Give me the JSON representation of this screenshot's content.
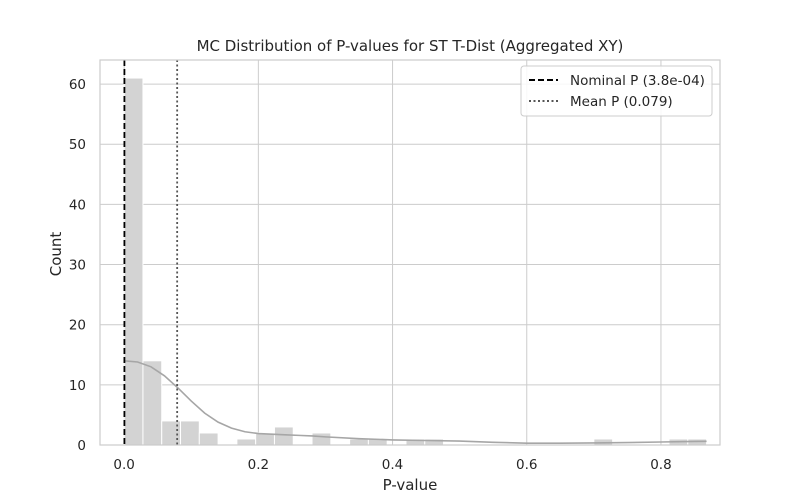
{
  "chart_data": {
    "type": "histogram",
    "title": "MC Distribution of P-values for ST T-Dist (Aggregated XY)",
    "xlabel": "P-value",
    "ylabel": "Count",
    "xlim": [
      -0.036,
      0.888
    ],
    "ylim": [
      0,
      64
    ],
    "xticks": [
      0.0,
      0.2,
      0.4,
      0.6,
      0.8
    ],
    "xtick_labels": [
      "0.0",
      "0.2",
      "0.4",
      "0.6",
      "0.8"
    ],
    "yticks": [
      0,
      10,
      20,
      30,
      40,
      50,
      60
    ],
    "ytick_labels": [
      "0",
      "10",
      "20",
      "30",
      "40",
      "50",
      "60"
    ],
    "grid": true,
    "bar_color": "#d3d3d3",
    "bin_edges": [
      0.0,
      0.028,
      0.056,
      0.084,
      0.112,
      0.14,
      0.168,
      0.196,
      0.224,
      0.252,
      0.28,
      0.308,
      0.336,
      0.364,
      0.392,
      0.42,
      0.448,
      0.476,
      0.504,
      0.532,
      0.56,
      0.588,
      0.616,
      0.644,
      0.672,
      0.7,
      0.728,
      0.756,
      0.784,
      0.812,
      0.84,
      0.868
    ],
    "counts": [
      61,
      14,
      4,
      4,
      2,
      0,
      1,
      2,
      3,
      0,
      2,
      0,
      1,
      1,
      0,
      1,
      1,
      0,
      0,
      0,
      0,
      0,
      0,
      0,
      0,
      1,
      0,
      0,
      0,
      1,
      1
    ],
    "kde": {
      "color": "#a6a6a6",
      "x": [
        0.0,
        0.02,
        0.04,
        0.06,
        0.08,
        0.1,
        0.12,
        0.14,
        0.16,
        0.18,
        0.2,
        0.22,
        0.24,
        0.26,
        0.28,
        0.3,
        0.35,
        0.4,
        0.45,
        0.5,
        0.55,
        0.6,
        0.65,
        0.7,
        0.75,
        0.8,
        0.85,
        0.868
      ],
      "y": [
        14,
        13.8,
        13,
        11.5,
        9.5,
        7.3,
        5.3,
        3.8,
        2.8,
        2.2,
        1.9,
        1.8,
        1.7,
        1.6,
        1.5,
        1.35,
        1.05,
        0.85,
        0.75,
        0.65,
        0.45,
        0.3,
        0.3,
        0.35,
        0.4,
        0.5,
        0.6,
        0.62
      ]
    },
    "lines": [
      {
        "name": "Nominal P (3.8e-04)",
        "x": 0.00038,
        "style": "dashed",
        "color": "#000000"
      },
      {
        "name": "Mean P (0.079)",
        "x": 0.079,
        "style": "dotted",
        "color": "#555555"
      }
    ],
    "legend_position": "top-right"
  }
}
